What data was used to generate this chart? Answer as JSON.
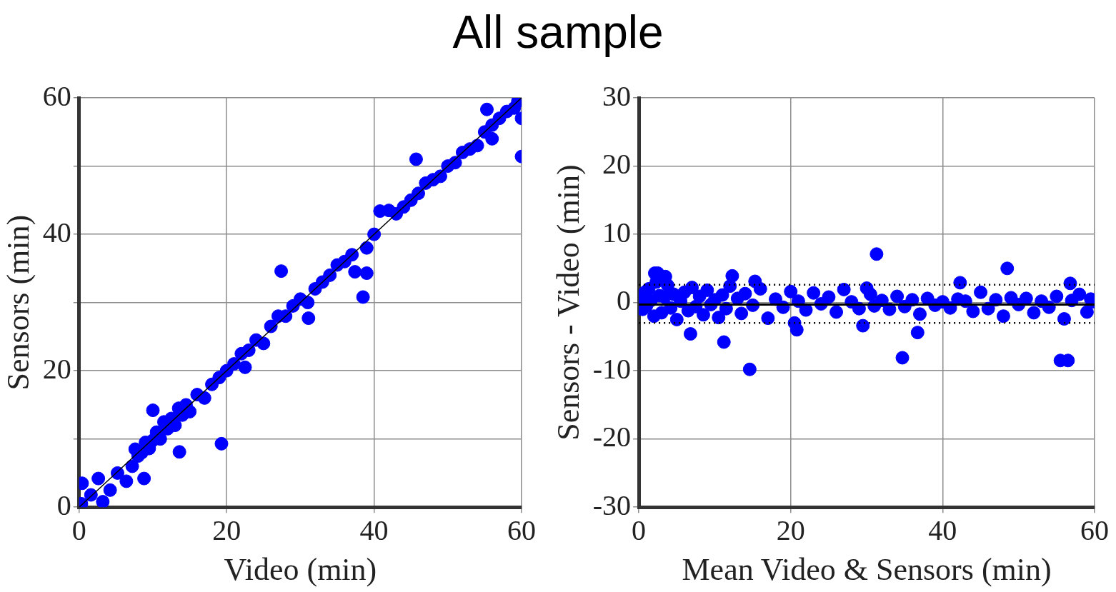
{
  "chart_data": [
    {
      "type": "scatter",
      "title": "All sample",
      "xlabel": "Video (min)",
      "ylabel": "Sensors (min)",
      "xlim": [
        0,
        60
      ],
      "ylim": [
        0,
        60
      ],
      "xticks": [
        0,
        20,
        40,
        60
      ],
      "yticks": [
        0,
        {
          "value": 10,
          "label": null
        },
        20,
        {
          "value": 30,
          "label": null
        },
        40,
        {
          "value": 50,
          "label": null
        },
        60
      ],
      "grid": true,
      "legend": false,
      "marker": "circle",
      "series": [
        {
          "color": "#0000ff",
          "x": [
            0.3,
            0.4,
            1.6,
            2.6,
            3.2,
            4.2,
            5.2,
            6.4,
            7.2,
            7.6,
            8,
            8.5,
            9,
            9.5,
            10,
            10.5,
            11,
            11.5,
            12,
            12.5,
            13,
            13.5,
            14,
            14.5,
            15,
            16,
            17,
            18,
            19,
            20,
            21,
            22,
            22.5,
            23,
            24,
            25,
            26,
            27,
            28,
            29,
            30,
            31,
            32,
            33,
            34,
            35,
            36,
            37,
            39,
            40,
            42,
            43,
            44,
            45,
            46,
            47,
            48,
            49,
            50,
            51,
            52,
            53,
            54,
            55,
            56,
            57,
            58,
            59,
            59.5,
            60,
            45.7,
            27.4,
            38.5,
            37.4,
            39,
            31.1,
            19.3,
            13.6,
            8.8,
            60,
            40.8,
            10,
            56,
            55.3
          ],
          "values": [
            0.5,
            3.5,
            1.8,
            4.2,
            0.8,
            2.5,
            5,
            3.8,
            6,
            8.5,
            7.5,
            8,
            9.5,
            8.6,
            9.8,
            11,
            10,
            12.5,
            11.5,
            13,
            12,
            14.5,
            13.5,
            15,
            14,
            16.5,
            16,
            18,
            19,
            20,
            21,
            22.5,
            20.5,
            23,
            24.5,
            24,
            26.5,
            28,
            28,
            29.5,
            30.5,
            30,
            32,
            33,
            34,
            35.5,
            36,
            37,
            38,
            40,
            43.5,
            43,
            44,
            45,
            46,
            47.5,
            48,
            48.5,
            50,
            50.5,
            52,
            52.5,
            53,
            55,
            56,
            57,
            58,
            58.5,
            59.5,
            57,
            51,
            34.6,
            30.8,
            34.5,
            34.3,
            27.7,
            9.3,
            8.1,
            4.2,
            51.4,
            43.4,
            14.2,
            54,
            58.3
          ]
        },
        {
          "type": "line",
          "color": "#000000",
          "marker": "none",
          "x": [
            0,
            60
          ],
          "values": [
            0,
            60
          ]
        }
      ]
    },
    {
      "type": "scatter",
      "xlabel": "Mean Video & Sensors (min)",
      "ylabel": "Sensors - Video (min)",
      "xlim": [
        0,
        60
      ],
      "ylim": [
        -30,
        30
      ],
      "xticks": [
        0,
        20,
        40,
        60
      ],
      "yticks": [
        -30,
        -20,
        -10,
        0,
        10,
        20,
        30
      ],
      "grid": true,
      "legend": false,
      "marker": "circle",
      "ref_lines": [
        {
          "axis": "y",
          "value": -0.3,
          "color": "#000000",
          "line_style": "solid"
        },
        {
          "axis": "y",
          "value": 2.6,
          "color": "#000000",
          "line_style": "dotted"
        },
        {
          "axis": "y",
          "value": -3.0,
          "color": "#000000",
          "line_style": "dotted"
        }
      ],
      "series": [
        {
          "color": "#0000ff",
          "x": [
            0.2,
            0.5,
            0.8,
            1,
            1.3,
            1.6,
            2,
            2.3,
            2.7,
            3,
            3.4,
            3.8,
            4.2,
            4.6,
            5,
            5.5,
            6,
            6.5,
            7,
            7.5,
            8,
            8.5,
            9,
            9.5,
            10,
            10.5,
            11,
            11.5,
            12,
            13,
            13.5,
            14,
            15,
            16,
            17,
            18,
            19,
            20,
            20.5,
            21,
            22,
            23,
            24,
            25,
            26,
            27,
            28,
            29,
            30,
            30.5,
            31,
            32,
            33,
            34,
            35,
            36,
            37,
            38,
            39,
            40,
            41,
            42,
            43,
            44,
            45,
            46,
            47,
            48,
            49,
            50,
            51,
            52,
            53,
            54,
            55,
            56,
            57,
            58,
            59,
            59.5,
            60,
            31.3,
            48.5,
            14.6,
            34.7,
            55.5,
            56.5,
            11.2,
            6.8,
            36.7,
            29.5,
            56.8,
            12.3,
            2.1,
            42.3,
            2.5,
            3.5,
            15.3,
            20.8
          ],
          "values": [
            0.5,
            -1,
            1.5,
            -0.5,
            2,
            0.3,
            -2,
            3,
            1,
            -1.5,
            0.8,
            2.5,
            -0.8,
            1.2,
            -2.5,
            0.2,
            1.5,
            -1.2,
            2.2,
            -0.6,
            0.9,
            -1.8,
            1.8,
            -0.3,
            0.4,
            -2.2,
            1.1,
            -0.9,
            2.4,
            0.6,
            -1.6,
            1.3,
            -0.4,
            2,
            -2.3,
            0.5,
            -0.7,
            1.6,
            -3,
            0.2,
            -1.1,
            1.4,
            -0.2,
            0.8,
            -1.4,
            1.9,
            0.1,
            -0.9,
            2.1,
            1.2,
            -0.5,
            0.3,
            -1,
            0.9,
            -0.6,
            0.4,
            -1.7,
            0.6,
            -0.4,
            0.1,
            -0.8,
            0.5,
            0.2,
            -1.3,
            1.5,
            -0.9,
            0.4,
            -2,
            0.7,
            -0.3,
            0.6,
            -1.5,
            0.2,
            -0.7,
            0.9,
            -2.4,
            0.3,
            1.2,
            -1.4,
            0.5,
            0.1,
            7.1,
            5,
            -9.8,
            -8.1,
            -8.5,
            -8.5,
            -5.8,
            -4.6,
            -4.4,
            -3.4,
            2.8,
            3.9,
            4.3,
            2.9,
            4.3,
            3.8,
            3.1,
            -4
          ]
        }
      ]
    }
  ]
}
